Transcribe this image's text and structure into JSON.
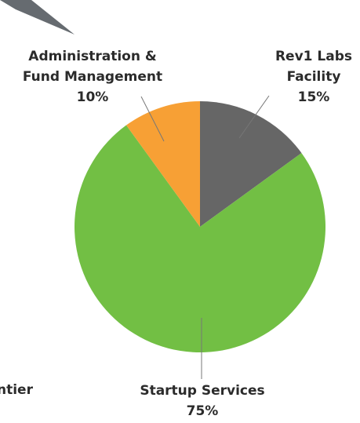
{
  "chart_data": {
    "type": "pie",
    "categories": [
      "Rev1 Labs Facility",
      "Startup Services",
      "Administration & Fund Management"
    ],
    "values": [
      15,
      75,
      10
    ],
    "value_labels": [
      "15%",
      "75%",
      "10%"
    ],
    "colors": [
      "#666666",
      "#72bf44",
      "#f7a035"
    ],
    "annotations": [
      "ntier"
    ]
  }
}
